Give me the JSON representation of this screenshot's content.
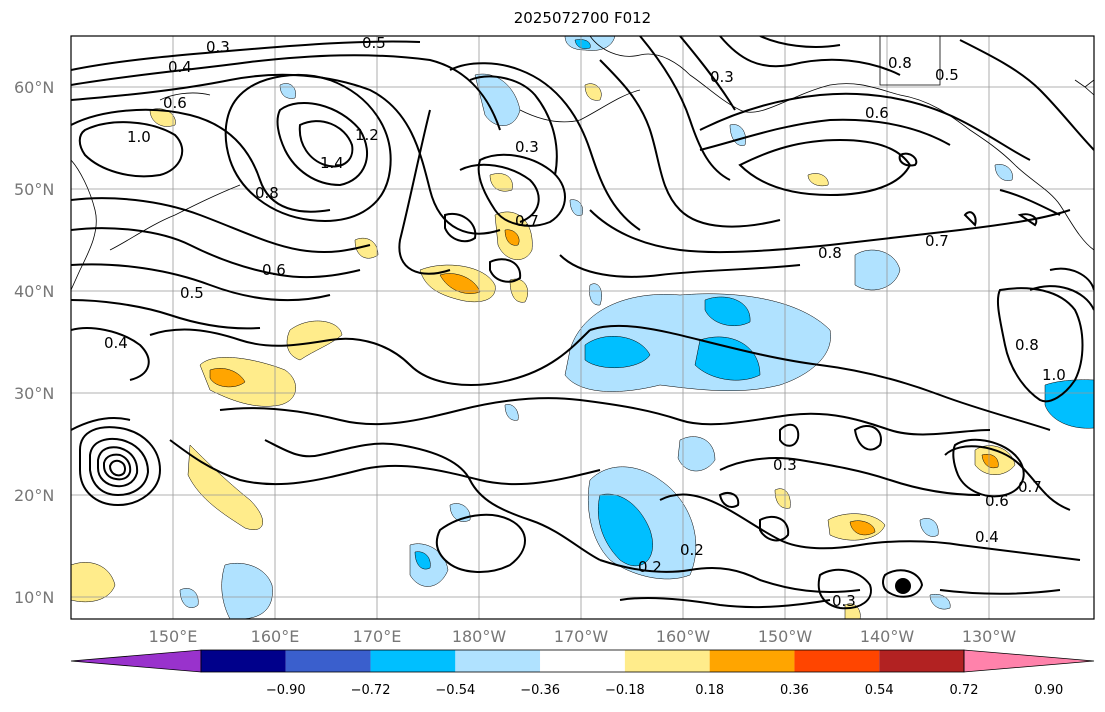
{
  "title": "2025072700 F012",
  "map": {
    "lat_labels": [
      "60°N",
      "50°N",
      "40°N",
      "30°N",
      "20°N",
      "10°N"
    ],
    "lon_labels": [
      "150°E",
      "160°E",
      "170°E",
      "180°W",
      "170°W",
      "160°W",
      "150°W",
      "140°W",
      "130°W"
    ],
    "contour_labels": [
      "0.3",
      "0.4",
      "0.5",
      "0.6",
      "1.0",
      "0.8",
      "1.4",
      "1.2",
      "0.3",
      "0.7",
      "0.6",
      "0.5",
      "0.4",
      "0.3",
      "0.2",
      "0.2",
      "0.3",
      "0.4",
      "0.6",
      "0.7",
      "0.8",
      "0.7",
      "0.6",
      "0.8",
      "1.0",
      "0.5",
      "0.8",
      "0.3"
    ]
  },
  "colorbar": {
    "labels": [
      "−0.90",
      "−0.72",
      "−0.54",
      "−0.36",
      "−0.18",
      "0.18",
      "0.36",
      "0.54",
      "0.72",
      "0.90"
    ],
    "colors": [
      "#9932cc",
      "#00008b",
      "#3a5fcd",
      "#00bfff",
      "#b0e2ff",
      "#ffffff",
      "#ffec8b",
      "#ffa500",
      "#ff4500",
      "#b22222",
      "#ff82ab"
    ]
  }
}
